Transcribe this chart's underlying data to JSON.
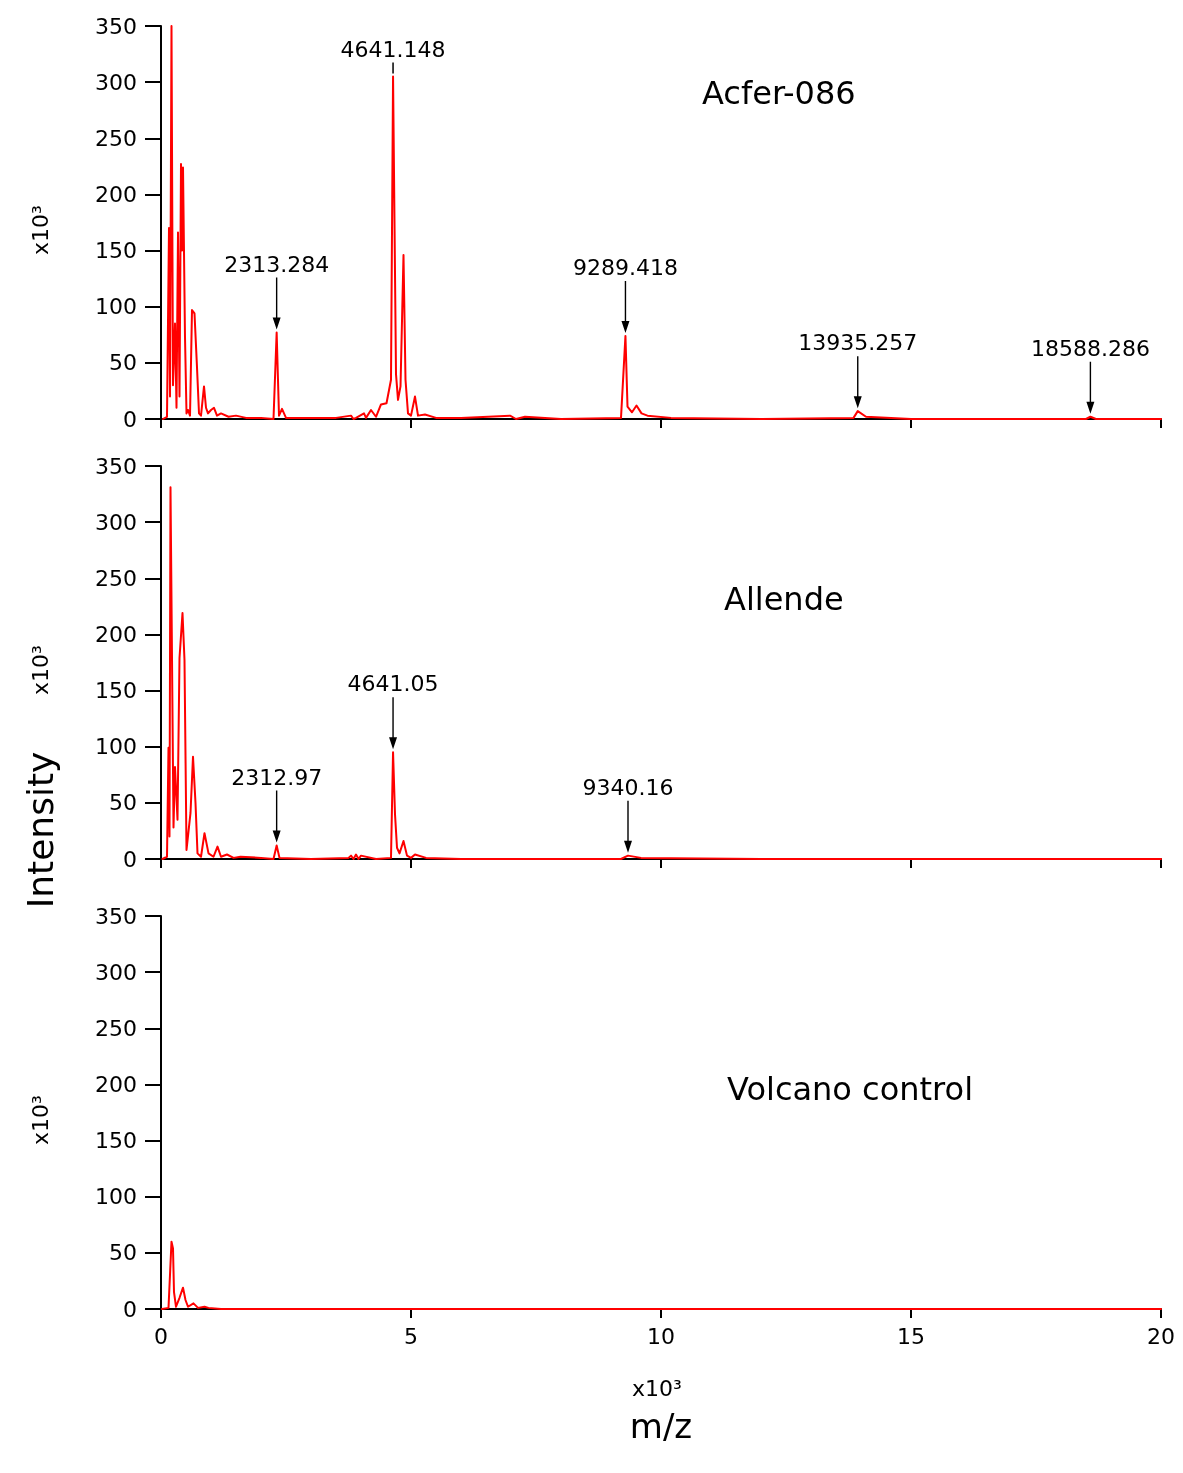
{
  "chart_data": [
    {
      "type": "line",
      "title": "Acfer-086",
      "ylabel": "x10³",
      "xlim": [
        0,
        20
      ],
      "xticks": [
        0,
        5,
        10,
        15,
        20
      ],
      "ylim": [
        0,
        350
      ],
      "yticks": [
        0,
        50,
        100,
        150,
        200,
        250,
        300,
        350
      ],
      "tick_labels": "y",
      "marker": "none",
      "line_style": "solid",
      "series": [
        {
          "color": "#ff0000",
          "x": [
            0.04,
            0.12,
            0.16,
            0.18,
            0.21,
            0.24,
            0.28,
            0.31,
            0.34,
            0.37,
            0.4,
            0.42,
            0.44,
            0.48,
            0.51,
            0.54,
            0.58,
            0.62,
            0.67,
            0.72,
            0.76,
            0.8,
            0.86,
            0.9,
            0.94,
            1.0,
            1.06,
            1.12,
            1.2,
            1.35,
            1.5,
            1.7,
            2.0,
            2.25,
            2.313,
            2.36,
            2.42,
            2.5,
            3.0,
            3.5,
            3.8,
            3.85,
            3.9,
            4.06,
            4.1,
            4.2,
            4.3,
            4.4,
            4.51,
            4.6,
            4.641,
            4.7,
            4.74,
            4.79,
            4.85,
            4.89,
            4.94,
            5.0,
            5.08,
            5.14,
            5.28,
            5.5,
            6.0,
            6.98,
            7.1,
            7.28,
            8.0,
            9.2,
            9.289,
            9.33,
            9.42,
            9.51,
            9.61,
            9.73,
            10.2,
            12.0,
            13.85,
            13.935,
            14.1,
            15.0,
            18.5,
            18.588,
            18.7,
            20.0
          ],
          "values": [
            0,
            2,
            170,
            20,
            350,
            30,
            85,
            10,
            166,
            20,
            227,
            150,
            224,
            73,
            5,
            8,
            3,
            97,
            94,
            46,
            5,
            3,
            29,
            10,
            5,
            8,
            10,
            3,
            5,
            2,
            3,
            1,
            1,
            0,
            77,
            3,
            9,
            1,
            1,
            1,
            3,
            0,
            1,
            5,
            1,
            8,
            2,
            13,
            14,
            35,
            305,
            40,
            17,
            29,
            146,
            35,
            5,
            3,
            20,
            3,
            4,
            1,
            1,
            3,
            0,
            2,
            0,
            1,
            74,
            11,
            6,
            12,
            5,
            3,
            1,
            0,
            1,
            7,
            2,
            0,
            0,
            2,
            0,
            0
          ]
        }
      ],
      "annotations": [
        {
          "text": "2313.284",
          "x": 2.313,
          "y": 77
        },
        {
          "text": "4641.148",
          "x": 4.641,
          "y": 305
        },
        {
          "text": "9289.418",
          "x": 9.289,
          "y": 74
        },
        {
          "text": "13935.257",
          "x": 13.935,
          "y": 7
        },
        {
          "text": "18588.286",
          "x": 18.588,
          "y": 2
        }
      ]
    },
    {
      "type": "line",
      "title": "Allende",
      "ylabel": "x10³",
      "xlim": [
        0,
        20
      ],
      "xticks": [
        0,
        5,
        10,
        15,
        20
      ],
      "ylim": [
        0,
        350
      ],
      "yticks": [
        0,
        50,
        100,
        150,
        200,
        250,
        300,
        350
      ],
      "tick_labels": "y",
      "marker": "none",
      "line_style": "solid",
      "series": [
        {
          "color": "#ff0000",
          "x": [
            0.03,
            0.12,
            0.15,
            0.17,
            0.19,
            0.25,
            0.28,
            0.33,
            0.37,
            0.43,
            0.47,
            0.51,
            0.59,
            0.64,
            0.69,
            0.73,
            0.8,
            0.87,
            0.95,
            1.05,
            1.13,
            1.2,
            1.32,
            1.45,
            1.59,
            2.0,
            2.25,
            2.313,
            2.37,
            3.0,
            3.75,
            3.8,
            3.85,
            3.9,
            3.95,
            4.0,
            4.3,
            4.6,
            4.641,
            4.68,
            4.72,
            4.77,
            4.85,
            4.92,
            5.0,
            5.08,
            5.3,
            6.0,
            9.2,
            9.34,
            9.6,
            12.0,
            20.0
          ],
          "values": [
            0,
            2,
            99,
            20,
            331,
            28,
            82,
            35,
            179,
            219,
            177,
            8,
            41,
            91,
            50,
            5,
            2,
            23,
            5,
            2,
            11,
            2,
            4,
            1,
            2,
            1,
            0,
            12,
            1,
            0,
            1,
            3,
            0,
            4,
            0,
            3,
            0,
            1,
            95,
            40,
            10,
            5,
            16,
            3,
            1,
            4,
            1,
            0,
            0,
            3,
            1,
            0,
            0
          ]
        }
      ],
      "annotations": [
        "Intensity",
        {
          "text": "2312.97",
          "x": 2.313,
          "y": 12
        },
        {
          "text": "4641.05",
          "x": 4.641,
          "y": 95
        },
        {
          "text": "9340.16",
          "x": 9.34,
          "y": 3
        }
      ]
    },
    {
      "type": "line",
      "title": "Volcano control",
      "ylabel": "x10³",
      "xlabel": "m/z",
      "xlim": [
        0,
        20
      ],
      "xticks": [
        0,
        5,
        10,
        15,
        20
      ],
      "ylim": [
        0,
        350
      ],
      "yticks": [
        0,
        50,
        100,
        150,
        200,
        250,
        300,
        350
      ],
      "marker": "none",
      "line_style": "solid",
      "series": [
        {
          "color": "#ff0000",
          "x": [
            0.02,
            0.15,
            0.21,
            0.24,
            0.26,
            0.3,
            0.37,
            0.44,
            0.49,
            0.54,
            0.65,
            0.74,
            0.87,
            0.95,
            1.2,
            20.0
          ],
          "values": [
            0,
            1,
            60,
            54,
            15,
            2,
            10,
            19,
            8,
            2,
            5,
            1,
            2,
            1,
            0,
            0
          ]
        }
      ],
      "annotations": [
        "x10³"
      ]
    }
  ]
}
